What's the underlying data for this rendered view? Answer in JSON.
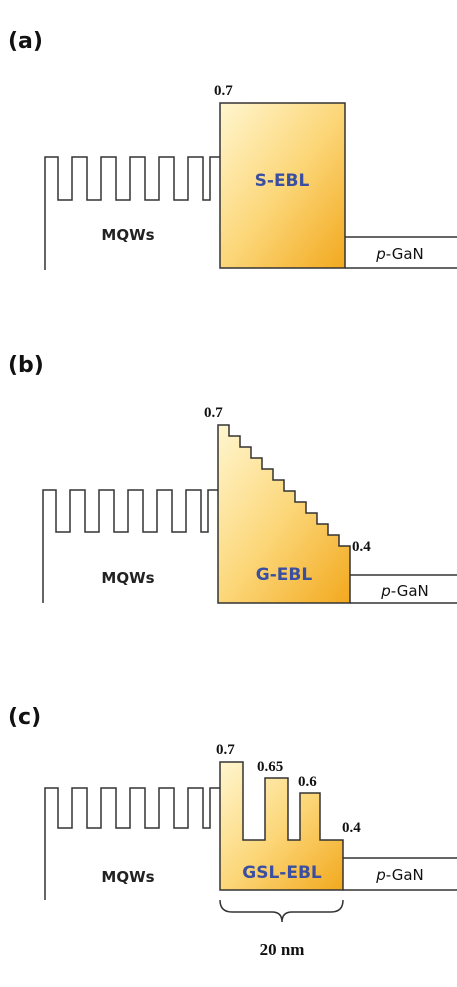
{
  "panels": [
    {
      "label": "(a)",
      "levels": [
        "0.7"
      ],
      "mqw": "MQWs",
      "ebl": "S-EBL",
      "pgan": {
        "italic": "p",
        "rest": "-GaN"
      }
    },
    {
      "label": "(b)",
      "levels": [
        "0.7",
        "0.4"
      ],
      "mqw": "MQWs",
      "ebl": "G-EBL",
      "pgan": {
        "italic": "p",
        "rest": "-GaN"
      }
    },
    {
      "label": "(c)",
      "levels": [
        "0.7",
        "0.65",
        "0.6",
        "0.4"
      ],
      "mqw": "MQWs",
      "ebl": "GSL-EBL",
      "pgan": {
        "italic": "p",
        "rest": "-GaN"
      },
      "width": "20 nm"
    }
  ]
}
